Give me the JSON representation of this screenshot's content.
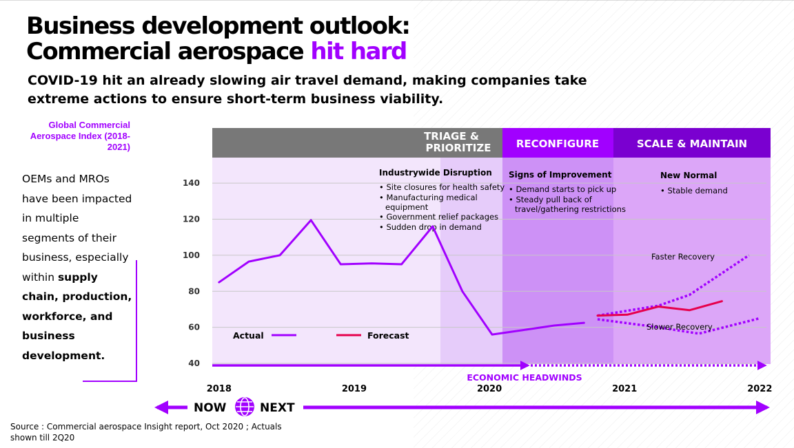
{
  "title_line1": "Business development outlook:",
  "title_line2_main": "Commercial aerospace ",
  "title_line2_accent": "hit hard",
  "subtitle": "COVID-19 hit an already slowing air travel demand, making companies take extreme actions to ensure short-term business viability.",
  "index_label": "Global Commercial Aerospace Index (2018-2021)",
  "side_text_plain": "OEMs and MROs have been impacted in multiple segments of their business, especially within ",
  "side_text_bold": "supply chain, production, workforce, and business development.",
  "source": "Source : Commercial aerospace Insight report, Oct 2020 ; Actuals shown till 2Q20",
  "colors": {
    "accent": "#a100ff",
    "forecast": "#e6004c",
    "header_gray": "#787878",
    "header_purple": "#a100ff",
    "header_dark": "#7a00d0"
  },
  "chart_data": {
    "type": "line",
    "title": "",
    "ylim": [
      40,
      150
    ],
    "yticks": [
      40,
      60,
      80,
      100,
      120,
      140
    ],
    "xlim": [
      2017.95,
      2022.08
    ],
    "year_ticks": [
      {
        "label": "2018",
        "x": 2018.0
      },
      {
        "label": "2019",
        "x": 2019.0
      },
      {
        "label": "2020",
        "x": 2020.0
      },
      {
        "label": "2021",
        "x": 2021.0
      },
      {
        "label": "2022",
        "x": 2022.0
      }
    ],
    "series": [
      {
        "name": "Actual",
        "style": "solid",
        "color": "#a100ff",
        "points": [
          [
            2018.0,
            85
          ],
          [
            2018.22,
            96.5
          ],
          [
            2018.45,
            100
          ],
          [
            2018.68,
            119.5
          ],
          [
            2018.9,
            95
          ],
          [
            2019.13,
            95.5
          ],
          [
            2019.35,
            95
          ],
          [
            2019.58,
            116
          ],
          [
            2019.8,
            80
          ],
          [
            2020.02,
            56
          ],
          [
            2020.25,
            58.5
          ],
          [
            2020.48,
            61
          ],
          [
            2020.7,
            62.5
          ]
        ]
      },
      {
        "name": "Forecast",
        "style": "solid",
        "color": "#e6004c",
        "points": [
          [
            2020.8,
            66.5
          ],
          [
            2021.02,
            67
          ],
          [
            2021.25,
            71.5
          ],
          [
            2021.48,
            69.5
          ],
          [
            2021.72,
            74.5
          ]
        ]
      },
      {
        "name": "Faster Recovery",
        "style": "dotted",
        "color": "#a100ff",
        "points": [
          [
            2020.8,
            66.5
          ],
          [
            2021.25,
            72
          ],
          [
            2021.48,
            78
          ],
          [
            2021.92,
            100
          ]
        ]
      },
      {
        "name": "Slower Recovery",
        "style": "dotted",
        "color": "#a100ff",
        "points": [
          [
            2020.8,
            64.5
          ],
          [
            2021.25,
            60
          ],
          [
            2021.55,
            56.5
          ],
          [
            2022.0,
            65
          ]
        ]
      }
    ],
    "phases": [
      {
        "label_lines": [
          "TRIAGE &",
          "PRIORITIZE"
        ],
        "start": 2019.58,
        "end": 2020.02
      },
      {
        "label_lines": [
          "RECONFIGURE"
        ],
        "start": 2020.02,
        "end": 2020.8
      },
      {
        "label_lines": [
          "SCALE & MAINTAIN"
        ],
        "start": 2020.8,
        "end": 2022.08
      }
    ],
    "annotations": [
      {
        "heading": "Industrywide Disruption",
        "bullets": [
          "Site closures for health safety",
          "Manufacturing medical",
          "equipment",
          "Government relief packages",
          "Sudden drop in demand"
        ]
      },
      {
        "heading": "Signs of Improvement",
        "bullets": [
          "Demand starts to pick up",
          "Steady pull back of",
          "travel/gathering restrictions"
        ]
      },
      {
        "heading": "New Normal",
        "bullets": [
          "Stable demand"
        ]
      }
    ],
    "legend": {
      "actual": "Actual",
      "forecast": "Forecast"
    },
    "scenario_labels": {
      "faster": "Faster Recovery",
      "slower": "Slower Recovery"
    },
    "headwinds": "ECONOMIC HEADWINDS",
    "now": "NOW",
    "next": "NEXT",
    "grid": true
  }
}
